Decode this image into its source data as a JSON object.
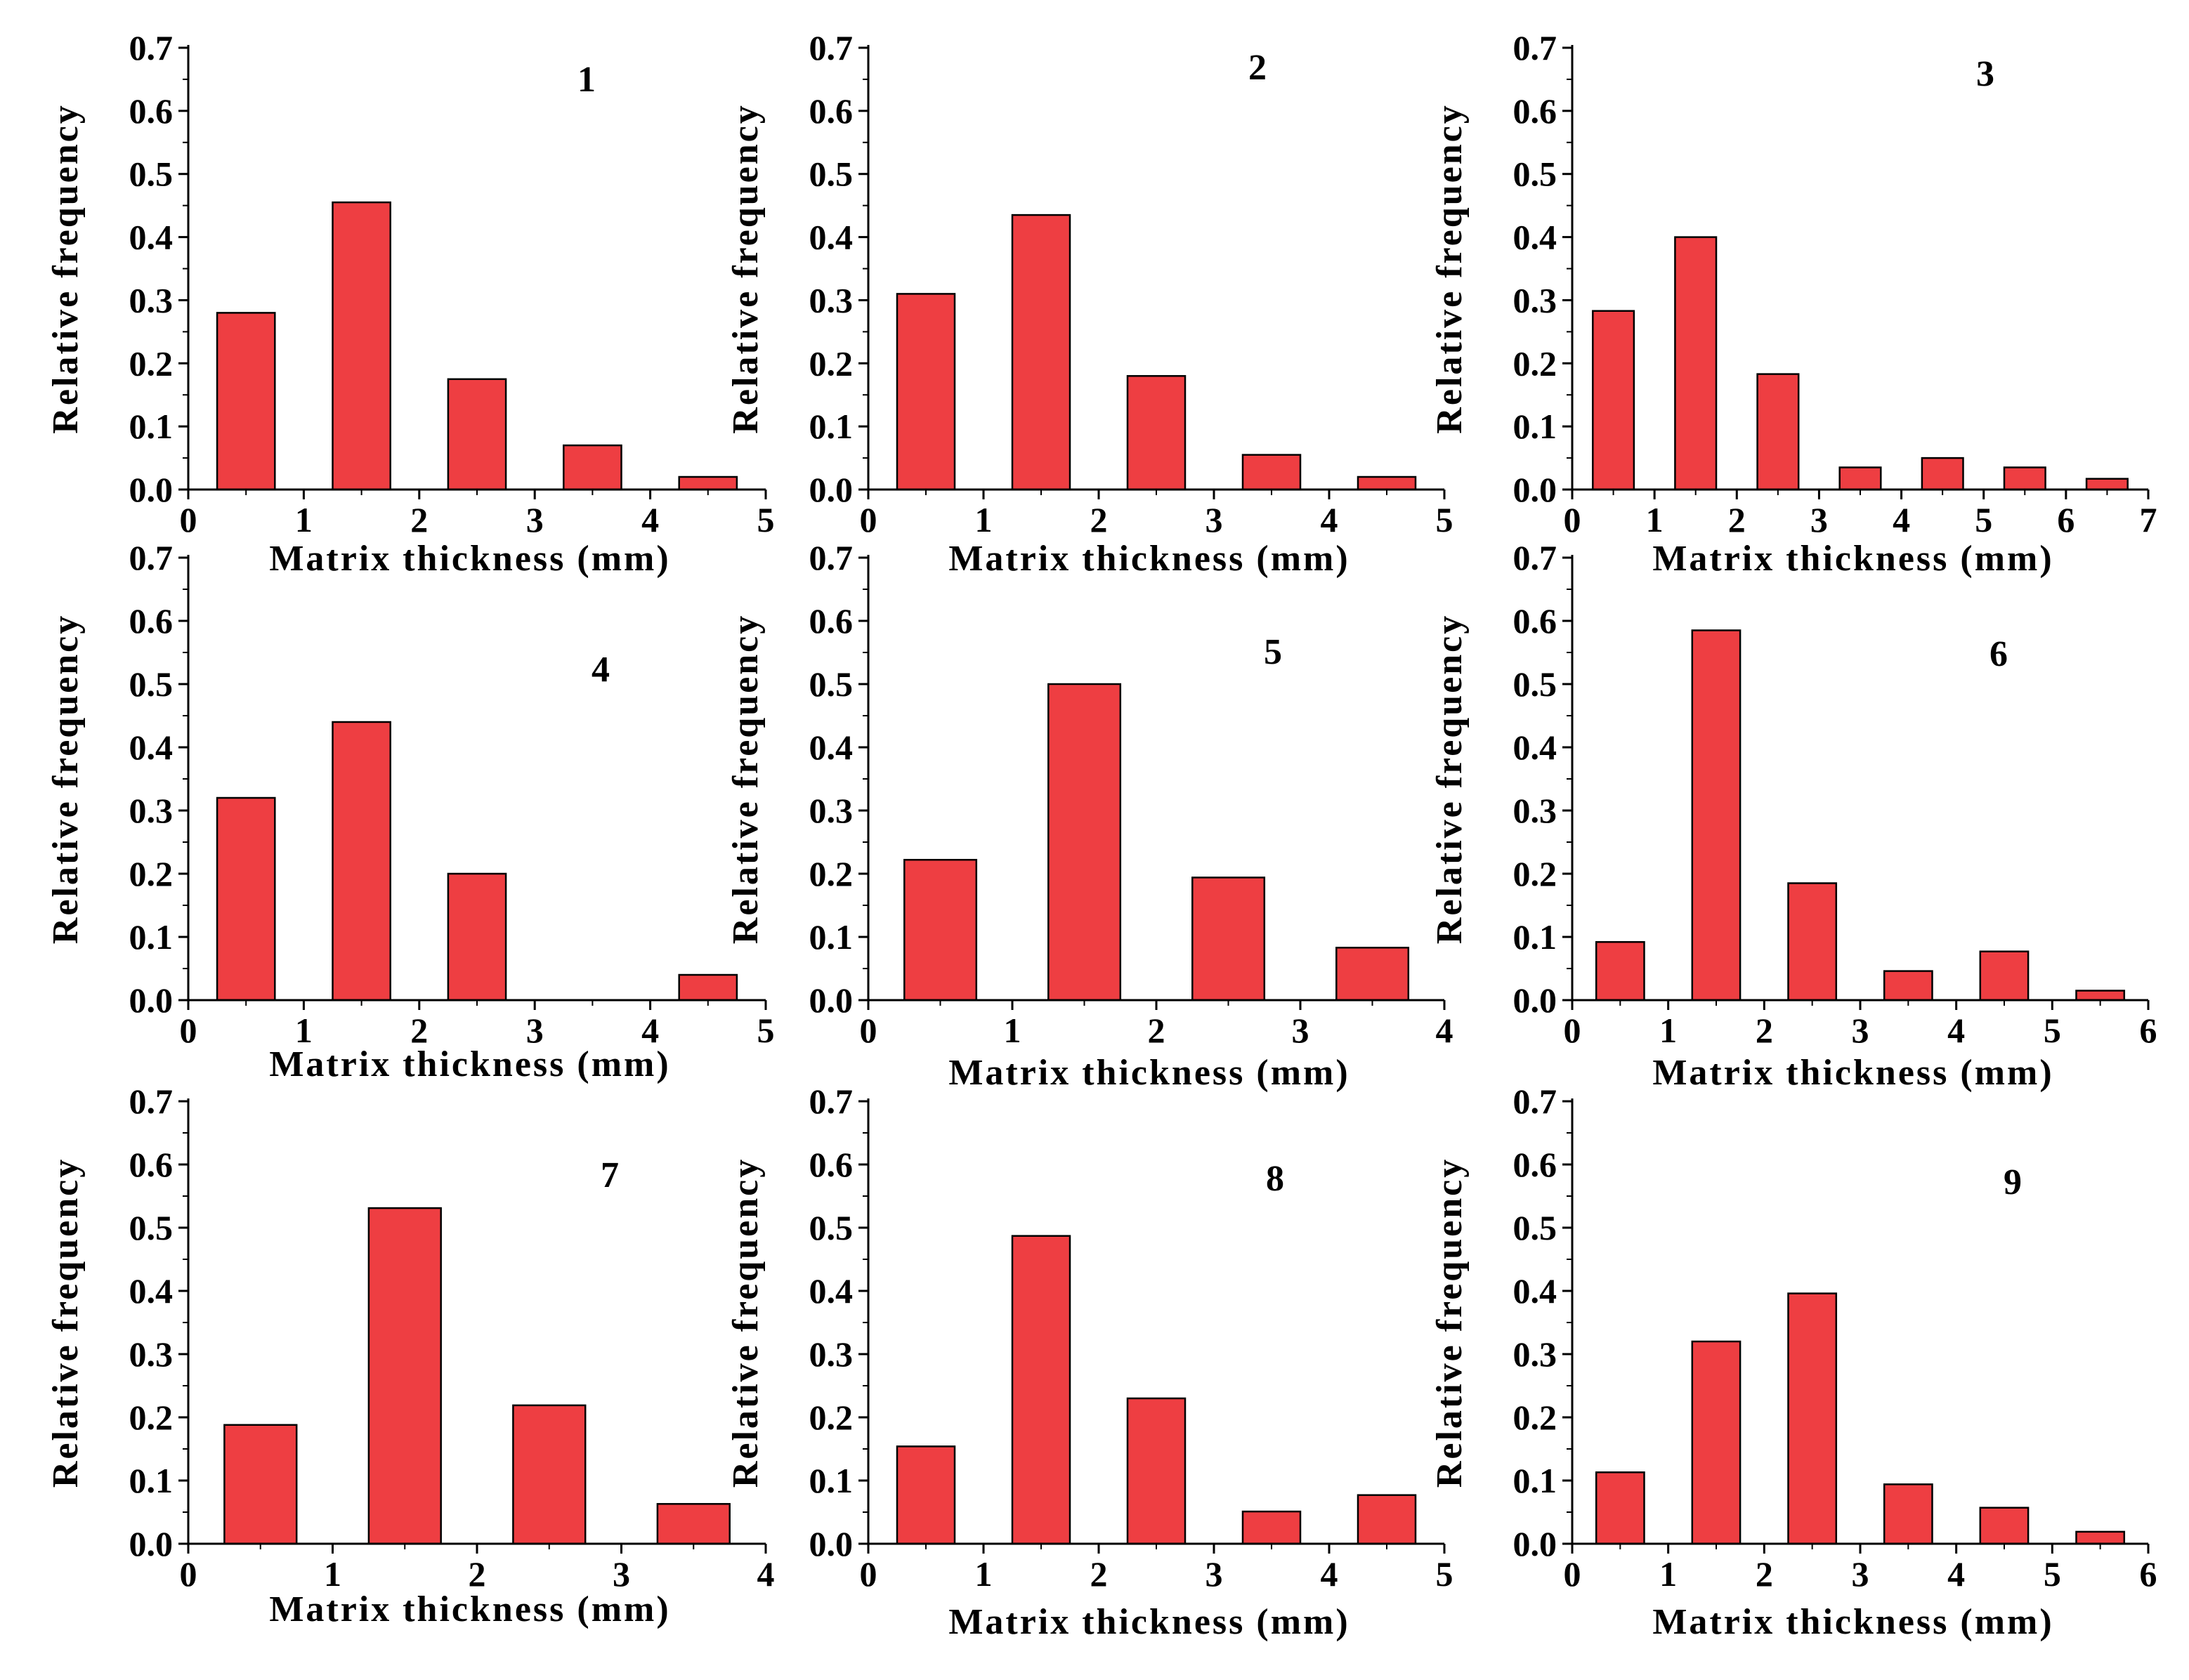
{
  "figure": {
    "bar_color": "#ee3e42",
    "axis_color": "#000000"
  },
  "chart_data": [
    {
      "type": "bar",
      "title": "1",
      "xlabel": "Matrix thickness (mm)",
      "ylabel": "Relative frequency",
      "xlim": [
        0,
        5
      ],
      "ylim": [
        0,
        0.7
      ],
      "x_ticks": [
        "0",
        "1",
        "2",
        "3",
        "4",
        "5"
      ],
      "y_ticks": [
        "0.0",
        "0.1",
        "0.2",
        "0.3",
        "0.4",
        "0.5",
        "0.6",
        "0.7"
      ],
      "bin_centers": [
        0.5,
        1.5,
        2.5,
        3.5,
        4.5
      ],
      "values": [
        0.28,
        0.455,
        0.175,
        0.07,
        0.02
      ]
    },
    {
      "type": "bar",
      "title": "2",
      "xlabel": "Matrix thickness (mm)",
      "ylabel": "Relative frequency",
      "xlim": [
        0,
        5
      ],
      "ylim": [
        0,
        0.7
      ],
      "x_ticks": [
        "0",
        "1",
        "2",
        "3",
        "4",
        "5"
      ],
      "y_ticks": [
        "0.0",
        "0.1",
        "0.2",
        "0.3",
        "0.4",
        "0.5",
        "0.6",
        "0.7"
      ],
      "bin_centers": [
        0.5,
        1.5,
        2.5,
        3.5,
        4.5
      ],
      "values": [
        0.31,
        0.435,
        0.18,
        0.055,
        0.02
      ]
    },
    {
      "type": "bar",
      "title": "3",
      "xlabel": "Matrix thickness (mm)",
      "ylabel": "Relative frequency",
      "xlim": [
        0,
        7
      ],
      "ylim": [
        0,
        0.7
      ],
      "x_ticks": [
        "0",
        "1",
        "2",
        "3",
        "4",
        "5",
        "6",
        "7"
      ],
      "y_ticks": [
        "0.0",
        "0.1",
        "0.2",
        "0.3",
        "0.4",
        "0.5",
        "0.6",
        "0.7"
      ],
      "bin_centers": [
        0.5,
        1.5,
        2.5,
        3.5,
        4.5,
        5.5,
        6.5
      ],
      "values": [
        0.283,
        0.4,
        0.183,
        0.035,
        0.05,
        0.035,
        0.017
      ]
    },
    {
      "type": "bar",
      "title": "4",
      "xlabel": "Matrix thickness (mm)",
      "ylabel": "Relative frequency",
      "xlim": [
        0,
        5
      ],
      "ylim": [
        0,
        0.7
      ],
      "x_ticks": [
        "0",
        "1",
        "2",
        "3",
        "4",
        "5"
      ],
      "y_ticks": [
        "0.0",
        "0.1",
        "0.2",
        "0.3",
        "0.4",
        "0.5",
        "0.6",
        "0.7"
      ],
      "bin_centers": [
        0.5,
        1.5,
        2.5,
        3.5,
        4.5
      ],
      "values": [
        0.32,
        0.44,
        0.2,
        0.0,
        0.04
      ]
    },
    {
      "type": "bar",
      "title": "5",
      "xlabel": "Matrix thickness (mm)",
      "ylabel": "Relative frequency",
      "xlim": [
        0,
        4
      ],
      "ylim": [
        0,
        0.7
      ],
      "x_ticks": [
        "0",
        "1",
        "2",
        "3",
        "4"
      ],
      "y_ticks": [
        "0.0",
        "0.1",
        "0.2",
        "0.3",
        "0.4",
        "0.5",
        "0.6",
        "0.7"
      ],
      "bin_centers": [
        0.5,
        1.5,
        2.5,
        3.5
      ],
      "values": [
        0.222,
        0.5,
        0.194,
        0.083
      ]
    },
    {
      "type": "bar",
      "title": "6",
      "xlabel": "Matrix thickness (mm)",
      "ylabel": "Relative frequency",
      "xlim": [
        0,
        6
      ],
      "ylim": [
        0,
        0.7
      ],
      "x_ticks": [
        "0",
        "1",
        "2",
        "3",
        "4",
        "5",
        "6"
      ],
      "y_ticks": [
        "0.0",
        "0.1",
        "0.2",
        "0.3",
        "0.4",
        "0.5",
        "0.6",
        "0.7"
      ],
      "bin_centers": [
        0.5,
        1.5,
        2.5,
        3.5,
        4.5,
        5.5
      ],
      "values": [
        0.092,
        0.585,
        0.185,
        0.046,
        0.077,
        0.015
      ]
    },
    {
      "type": "bar",
      "title": "7",
      "xlabel": "Matrix thickness (mm)",
      "ylabel": "Relative frequency",
      "xlim": [
        0,
        4
      ],
      "ylim": [
        0,
        0.7
      ],
      "x_ticks": [
        "0",
        "1",
        "2",
        "3",
        "4"
      ],
      "y_ticks": [
        "0.0",
        "0.1",
        "0.2",
        "0.3",
        "0.4",
        "0.5",
        "0.6",
        "0.7"
      ],
      "bin_centers": [
        0.5,
        1.5,
        2.5,
        3.5
      ],
      "values": [
        0.188,
        0.531,
        0.219,
        0.063
      ]
    },
    {
      "type": "bar",
      "title": "8",
      "xlabel": "Matrix thickness (mm)",
      "ylabel": "Relative frequency",
      "xlim": [
        0,
        5
      ],
      "ylim": [
        0,
        0.7
      ],
      "x_ticks": [
        "0",
        "1",
        "2",
        "3",
        "4",
        "5"
      ],
      "y_ticks": [
        "0.0",
        "0.1",
        "0.2",
        "0.3",
        "0.4",
        "0.5",
        "0.6",
        "0.7"
      ],
      "bin_centers": [
        0.5,
        1.5,
        2.5,
        3.5,
        4.5
      ],
      "values": [
        0.154,
        0.487,
        0.23,
        0.051,
        0.077
      ]
    },
    {
      "type": "bar",
      "title": "9",
      "xlabel": "Matrix thickness (mm)",
      "ylabel": "Relative frequency",
      "xlim": [
        0,
        6
      ],
      "ylim": [
        0,
        0.7
      ],
      "x_ticks": [
        "0",
        "1",
        "2",
        "3",
        "4",
        "5",
        "6"
      ],
      "y_ticks": [
        "0.0",
        "0.1",
        "0.2",
        "0.3",
        "0.4",
        "0.5",
        "0.6",
        "0.7"
      ],
      "bin_centers": [
        0.5,
        1.5,
        2.5,
        3.5,
        4.5,
        5.5
      ],
      "values": [
        0.113,
        0.32,
        0.396,
        0.094,
        0.057,
        0.019
      ]
    }
  ]
}
